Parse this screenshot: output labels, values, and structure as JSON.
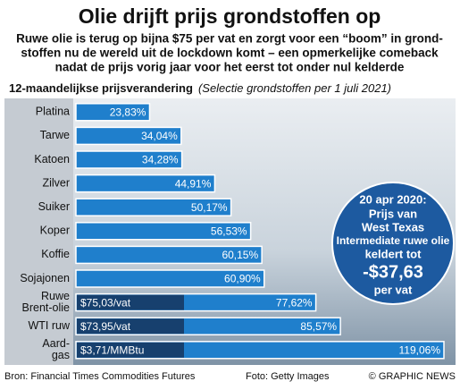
{
  "chart_data": {
    "type": "bar",
    "orientation": "horizontal",
    "title": "Olie drijft prijs grondstoffen op",
    "subtitle": [
      "Ruwe olie is terug op bijna $75 per vat en zorgt voor een “boom” in grond-",
      "stoffen nu de wereld uit de lockdown komt – een opmerkelijke comeback",
      "nadat de prijs vorig jaar voor het eerst tot onder nul kelderde"
    ],
    "chart_label": "12-maandelijkse prijsverandering",
    "chart_note": "(Selectie grondstoffen per 1 juli 2021)",
    "categories": [
      [
        "Platina"
      ],
      [
        "Tarwe"
      ],
      [
        "Katoen"
      ],
      [
        "Zilver"
      ],
      [
        "Suiker"
      ],
      [
        "Koper"
      ],
      [
        "Koffie"
      ],
      [
        "Sojajonen"
      ],
      [
        "Ruwe",
        "Brent-olie"
      ],
      [
        "WTI ruw"
      ],
      [
        "Aard-",
        "gas"
      ]
    ],
    "values": [
      23.83,
      34.04,
      34.28,
      44.91,
      50.17,
      56.53,
      60.15,
      60.9,
      77.62,
      85.57,
      119.06
    ],
    "value_labels": [
      "23,83%",
      "34,04%",
      "34,28%",
      "44,91%",
      "50,17%",
      "56,53%",
      "60,15%",
      "60,90%",
      "77,62%",
      "85,57%",
      "119,06%"
    ],
    "inner_labels": [
      null,
      null,
      null,
      null,
      null,
      null,
      null,
      null,
      "$75,03/vat",
      "$73,95/vat",
      "$3,71/MMBtu"
    ],
    "color": "#1f7fcc",
    "annotation": [
      "20 apr 2020:",
      "Prijs van",
      "West Texas",
      "Intermediate ruwe olie",
      "keldert tot",
      "-$37,63",
      "per vat"
    ],
    "source": "Bron: Financial Times Commodities Futures",
    "photo_credit": "Foto: Getty Images",
    "credit": "© GRAPHIC NEWS"
  }
}
